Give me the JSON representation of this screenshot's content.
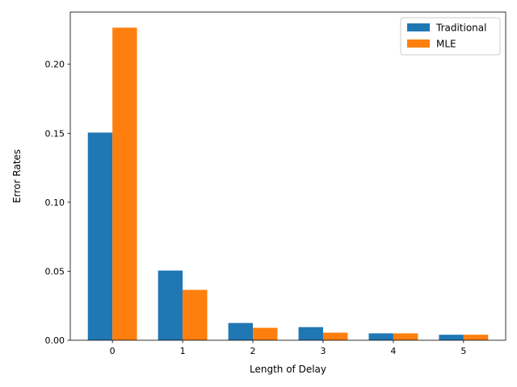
{
  "chart_data": {
    "type": "bar",
    "title": "",
    "xlabel": "Length of Delay",
    "ylabel": "Error Rates",
    "categories": [
      "0",
      "1",
      "2",
      "3",
      "4",
      "5"
    ],
    "series": [
      {
        "name": "Traditional",
        "color": "#1f77b4",
        "values": [
          0.1505,
          0.0505,
          0.0125,
          0.0095,
          0.005,
          0.004
        ]
      },
      {
        "name": "MLE",
        "color": "#ff7f0e",
        "values": [
          0.2265,
          0.0365,
          0.009,
          0.0055,
          0.005,
          0.004
        ]
      }
    ],
    "ylim": [
      0,
      0.2378
    ],
    "yticks": [
      0.0,
      0.05,
      0.1,
      0.15,
      0.2
    ],
    "ytick_labels": [
      "0.00",
      "0.05",
      "0.10",
      "0.15",
      "0.20"
    ],
    "legend_position": "top-right",
    "grid": false
  }
}
